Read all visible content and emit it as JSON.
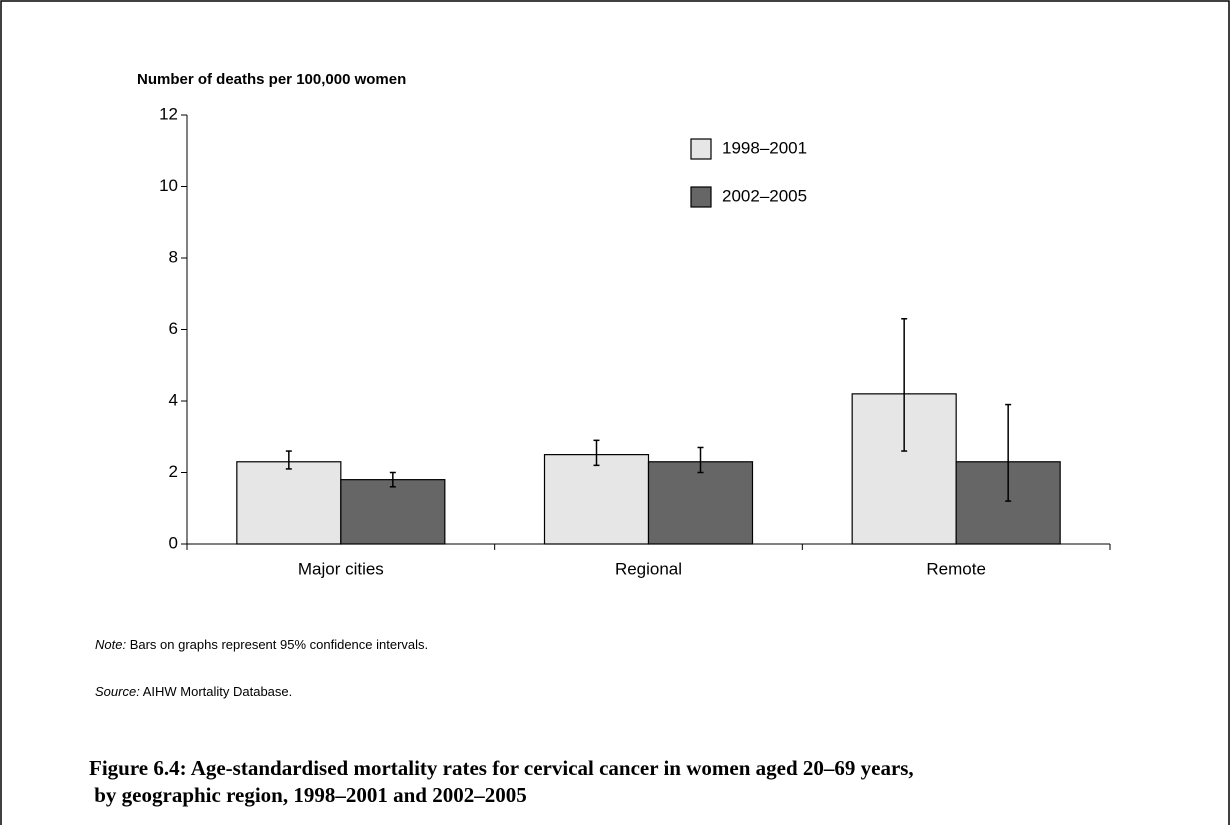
{
  "chart_data": {
    "type": "bar",
    "y_label": "Number of deaths per 100,000 women",
    "categories": [
      "Major cities",
      "Regional",
      "Remote"
    ],
    "series": [
      {
        "name": "1998–2001",
        "color": "#e6e6e6",
        "values": [
          2.3,
          2.5,
          4.2
        ],
        "error_low": [
          2.1,
          2.2,
          2.6
        ],
        "error_high": [
          2.6,
          2.9,
          6.3
        ]
      },
      {
        "name": "2002–2005",
        "color": "#666666",
        "values": [
          1.8,
          2.3,
          2.3
        ],
        "error_low": [
          1.6,
          2.0,
          1.2
        ],
        "error_high": [
          2.0,
          2.7,
          3.9
        ]
      }
    ],
    "ylim": [
      0,
      12
    ],
    "yticks": [
      0,
      2,
      4,
      6,
      8,
      10,
      12
    ],
    "note": {
      "label": "Note:",
      "text": " Bars on graphs represent 95% confidence intervals."
    },
    "source": {
      "label": "Source:",
      "text": " AIHW Mortality Database."
    },
    "caption": [
      "Figure 6.4: Age-standardised mortality rates for cervical cancer in women aged 20–69 years,",
      " by geographic region, 1998–2001 and 2002–2005"
    ]
  }
}
